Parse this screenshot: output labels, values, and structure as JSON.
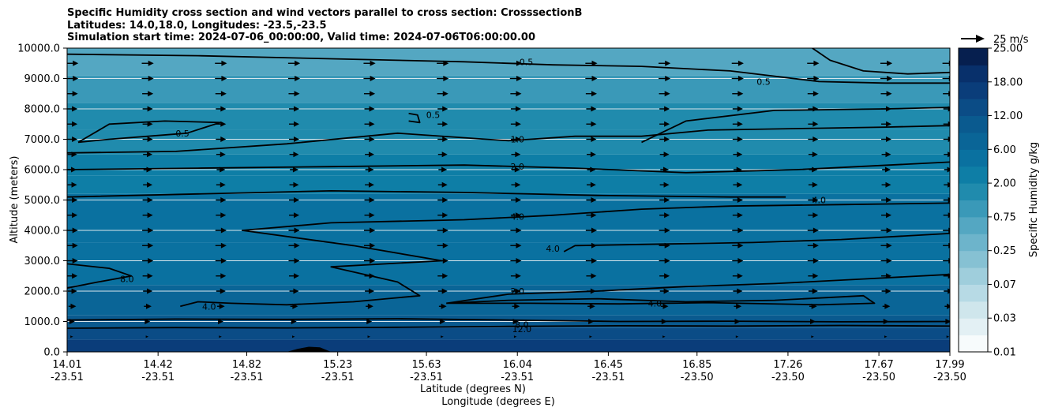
{
  "chart_data": {
    "type": "heatmap",
    "title": "Specific Humidity cross section and wind vectors parallel to cross section: CrosssectionB",
    "subtitle_lines": [
      "Latitudes: 14.0,18.0, Longitudes: -23.5,-23.5",
      "Simulation start time: 2024-07-06_00:00:00, Valid time: 2024-07-06T06:00:00.00"
    ],
    "ylabel": "Altitude (meters)",
    "xlabel_lines": [
      "Latitude (degrees N)",
      "Longitude (degrees E)"
    ],
    "ylim": [
      0,
      10000
    ],
    "y_ticks": [
      "0.0",
      "1000.0",
      "2000.0",
      "3000.0",
      "4000.0",
      "5000.0",
      "6000.0",
      "7000.0",
      "8000.0",
      "9000.0",
      "10000.0"
    ],
    "x_ticks": [
      {
        "lat": "14.01",
        "lon": "-23.51"
      },
      {
        "lat": "14.42",
        "lon": "-23.51"
      },
      {
        "lat": "14.82",
        "lon": "-23.51"
      },
      {
        "lat": "15.23",
        "lon": "-23.51"
      },
      {
        "lat": "15.63",
        "lon": "-23.51"
      },
      {
        "lat": "16.04",
        "lon": "-23.51"
      },
      {
        "lat": "16.45",
        "lon": "-23.51"
      },
      {
        "lat": "16.85",
        "lon": "-23.50"
      },
      {
        "lat": "17.26",
        "lon": "-23.50"
      },
      {
        "lat": "17.67",
        "lon": "-23.50"
      },
      {
        "lat": "17.99",
        "lon": "-23.50"
      }
    ],
    "colorbar": {
      "label": "Specific Humidity g/kg",
      "ticks": [
        "0.01",
        "0.03",
        "0.07",
        "0.25",
        "0.75",
        "2.00",
        "6.00",
        "12.00",
        "18.00",
        "25.00"
      ],
      "levels": [
        0.01,
        0.02,
        0.03,
        0.05,
        0.07,
        0.1,
        0.25,
        0.5,
        0.75,
        1.0,
        2.0,
        4.0,
        6.0,
        8.0,
        12.0,
        16.0,
        18.0,
        22.0,
        25.0
      ],
      "colors": [
        "#f7fbfc",
        "#e3f0f4",
        "#cfe6ec",
        "#b7dae5",
        "#9fcedc",
        "#86c1d3",
        "#6db4cb",
        "#54a7c2",
        "#3a99b8",
        "#208bad",
        "#0e7ea6",
        "#0a71a0",
        "#0a6597",
        "#0a5a8f",
        "#0b4c86",
        "#0a3d7a",
        "#08306b",
        "#061f4f"
      ]
    },
    "background_bands": [
      {
        "y_low": 0,
        "y_high": 400,
        "q": 16.0
      },
      {
        "y_low": 400,
        "y_high": 800,
        "q": 12.0
      },
      {
        "y_low": 800,
        "y_high": 1200,
        "q": 8.0
      },
      {
        "y_low": 1200,
        "y_high": 2200,
        "q": 6.0
      },
      {
        "y_low": 2200,
        "y_high": 3600,
        "q": 5.0
      },
      {
        "y_low": 3600,
        "y_high": 5200,
        "q": 4.0
      },
      {
        "y_low": 5200,
        "y_high": 5800,
        "q": 3.0
      },
      {
        "y_low": 5800,
        "y_high": 6500,
        "q": 2.0
      },
      {
        "y_low": 6500,
        "y_high": 7300,
        "q": 1.5
      },
      {
        "y_low": 7300,
        "y_high": 8200,
        "q": 1.0
      },
      {
        "y_low": 8200,
        "y_high": 9100,
        "q": 0.75
      },
      {
        "y_low": 9100,
        "y_high": 10000,
        "q": 0.5
      }
    ],
    "contours": [
      {
        "level": "12.0",
        "points": [
          [
            14.01,
            780
          ],
          [
            14.5,
            800
          ],
          [
            15.0,
            790
          ],
          [
            15.5,
            810
          ],
          [
            16.0,
            840
          ],
          [
            16.5,
            860
          ],
          [
            17.0,
            850
          ],
          [
            17.5,
            870
          ],
          [
            17.99,
            850
          ]
        ]
      },
      {
        "level": "8.0",
        "points": [
          [
            14.01,
            1050
          ],
          [
            14.5,
            1080
          ],
          [
            15.0,
            1070
          ],
          [
            15.5,
            1090
          ],
          [
            16.0,
            1050
          ],
          [
            16.5,
            1000
          ],
          [
            17.0,
            1010
          ],
          [
            17.5,
            990
          ],
          [
            17.99,
            1000
          ]
        ]
      },
      {
        "level": "8.0",
        "points": [
          [
            14.01,
            2100
          ],
          [
            14.15,
            2300
          ],
          [
            14.3,
            2500
          ],
          [
            14.2,
            2750
          ],
          [
            14.01,
            2900
          ]
        ]
      },
      {
        "level": "4.0",
        "points": [
          [
            14.52,
            1500
          ],
          [
            14.6,
            1650
          ],
          [
            14.75,
            1600
          ],
          [
            15.0,
            1550
          ],
          [
            15.3,
            1650
          ],
          [
            15.6,
            1850
          ],
          [
            15.5,
            2300
          ],
          [
            15.2,
            2800
          ],
          [
            15.7,
            3000
          ],
          [
            15.3,
            3500
          ],
          [
            14.8,
            4000
          ],
          [
            15.2,
            4250
          ],
          [
            15.8,
            4350
          ],
          [
            16.2,
            4500
          ],
          [
            16.6,
            4700
          ],
          [
            17.0,
            4800
          ],
          [
            17.5,
            4850
          ],
          [
            17.99,
            4900
          ]
        ]
      },
      {
        "level": "4.0",
        "points": [
          [
            16.25,
            3300
          ],
          [
            16.3,
            3500
          ],
          [
            16.7,
            3550
          ],
          [
            17.1,
            3600
          ],
          [
            17.5,
            3700
          ],
          [
            17.99,
            3900
          ]
        ]
      },
      {
        "level": "4.0",
        "points": [
          [
            14.01,
            5100
          ],
          [
            14.6,
            5200
          ],
          [
            15.2,
            5300
          ],
          [
            15.8,
            5250
          ],
          [
            16.4,
            5150
          ],
          [
            17.0,
            5100
          ],
          [
            17.25,
            5100
          ]
        ]
      },
      {
        "level": "2.0",
        "points": [
          [
            15.72,
            1600
          ],
          [
            16.0,
            1700
          ],
          [
            16.4,
            1750
          ],
          [
            16.8,
            1650
          ],
          [
            17.2,
            1700
          ],
          [
            17.6,
            1850
          ],
          [
            17.65,
            1600
          ],
          [
            17.4,
            1550
          ],
          [
            16.9,
            1620
          ],
          [
            16.5,
            1580
          ],
          [
            16.1,
            1600
          ],
          [
            15.72,
            1600
          ]
        ]
      },
      {
        "level": "2.0",
        "points": [
          [
            15.72,
            1600
          ],
          [
            16.0,
            1900
          ],
          [
            16.4,
            2000
          ],
          [
            16.8,
            2150
          ],
          [
            17.2,
            2250
          ],
          [
            17.6,
            2400
          ],
          [
            17.99,
            2550
          ]
        ]
      },
      {
        "level": "2.0",
        "points": [
          [
            14.01,
            6000
          ],
          [
            14.6,
            6050
          ],
          [
            15.2,
            6100
          ],
          [
            15.8,
            6150
          ],
          [
            16.3,
            6050
          ],
          [
            16.8,
            5900
          ],
          [
            17.3,
            6000
          ],
          [
            17.99,
            6250
          ]
        ]
      },
      {
        "level": "1.0",
        "points": [
          [
            14.01,
            6550
          ],
          [
            14.5,
            6600
          ],
          [
            15.0,
            6850
          ],
          [
            15.5,
            7200
          ],
          [
            16.0,
            6950
          ],
          [
            16.3,
            7100
          ],
          [
            16.6,
            7100
          ],
          [
            16.9,
            7300
          ],
          [
            17.3,
            7350
          ],
          [
            17.7,
            7400
          ],
          [
            17.99,
            7450
          ]
        ]
      },
      {
        "level": "1.0",
        "points": [
          [
            16.6,
            6900
          ],
          [
            16.8,
            7600
          ],
          [
            17.2,
            7950
          ],
          [
            17.7,
            8000
          ],
          [
            17.99,
            8050
          ]
        ]
      },
      {
        "level": "0.5",
        "points": [
          [
            14.06,
            6900
          ],
          [
            14.2,
            7500
          ],
          [
            14.45,
            7600
          ],
          [
            14.7,
            7550
          ],
          [
            14.55,
            7200
          ],
          [
            14.2,
            7000
          ],
          [
            14.06,
            6900
          ]
        ]
      },
      {
        "level": "0.5",
        "points": [
          [
            15.55,
            7850
          ],
          [
            15.59,
            7800
          ],
          [
            15.6,
            7550
          ],
          [
            15.55,
            7600
          ]
        ]
      },
      {
        "level": "0.5",
        "points": [
          [
            14.01,
            9800
          ],
          [
            14.6,
            9750
          ],
          [
            15.2,
            9650
          ],
          [
            15.8,
            9550
          ],
          [
            16.2,
            9450
          ],
          [
            16.6,
            9400
          ],
          [
            17.0,
            9250
          ],
          [
            17.4,
            8900
          ],
          [
            17.7,
            8850
          ],
          [
            17.99,
            8850
          ]
        ]
      },
      {
        "level": "0.5",
        "points": [
          [
            17.37,
            10000
          ],
          [
            17.45,
            9600
          ],
          [
            17.6,
            9250
          ],
          [
            17.8,
            9150
          ],
          [
            17.99,
            9200
          ]
        ]
      }
    ],
    "contour_labels": [
      {
        "text": "0.5",
        "lat": 16.08,
        "alt": 9550
      },
      {
        "text": "0.5",
        "lat": 17.15,
        "alt": 8900
      },
      {
        "text": "0.5",
        "lat": 15.66,
        "alt": 7800
      },
      {
        "text": "0.5",
        "lat": 14.53,
        "alt": 7200
      },
      {
        "text": "1.0",
        "lat": 16.04,
        "alt": 7000
      },
      {
        "text": "2.0",
        "lat": 16.04,
        "alt": 6100
      },
      {
        "text": "4.0",
        "lat": 17.4,
        "alt": 5000
      },
      {
        "text": "4.0",
        "lat": 16.04,
        "alt": 4450
      },
      {
        "text": "4.0",
        "lat": 16.2,
        "alt": 3400
      },
      {
        "text": "8.0",
        "lat": 14.28,
        "alt": 2400
      },
      {
        "text": "2.0",
        "lat": 16.04,
        "alt": 2000
      },
      {
        "text": "4.0",
        "lat": 14.65,
        "alt": 1500
      },
      {
        "text": "4.0",
        "lat": 16.66,
        "alt": 1600
      },
      {
        "text": "8.0",
        "lat": 16.06,
        "alt": 900
      },
      {
        "text": "12.0",
        "lat": 16.06,
        "alt": 750
      }
    ],
    "terrain": [
      [
        15.0,
        0
      ],
      [
        15.05,
        100
      ],
      [
        15.1,
        170
      ],
      [
        15.15,
        150
      ],
      [
        15.2,
        0
      ]
    ],
    "wind": {
      "reference_label": "25 m/s",
      "reference_speed": 25,
      "note": "vectors parallel to cross section, mostly northward (pointing right)",
      "rows": [
        {
          "alt": 9500,
          "speed": 12
        },
        {
          "alt": 9000,
          "speed": 12
        },
        {
          "alt": 8500,
          "speed": 11
        },
        {
          "alt": 8000,
          "speed": 10
        },
        {
          "alt": 7500,
          "speed": 10
        },
        {
          "alt": 7000,
          "speed": 10
        },
        {
          "alt": 6500,
          "speed": 9
        },
        {
          "alt": 6000,
          "speed": 8
        },
        {
          "alt": 5500,
          "speed": 9
        },
        {
          "alt": 5000,
          "speed": 10
        },
        {
          "alt": 4500,
          "speed": 10
        },
        {
          "alt": 4000,
          "speed": 11
        },
        {
          "alt": 3500,
          "speed": 11
        },
        {
          "alt": 3000,
          "speed": 11
        },
        {
          "alt": 2500,
          "speed": 10
        },
        {
          "alt": 2000,
          "speed": 9
        },
        {
          "alt": 1500,
          "speed": 7
        },
        {
          "alt": 1000,
          "speed": 4
        },
        {
          "alt": 500,
          "speed": 2
        }
      ],
      "lat_positions": [
        14.03,
        14.37,
        14.7,
        15.03,
        15.37,
        15.7,
        16.03,
        16.37,
        16.7,
        17.03,
        17.37,
        17.7,
        17.98
      ]
    }
  }
}
